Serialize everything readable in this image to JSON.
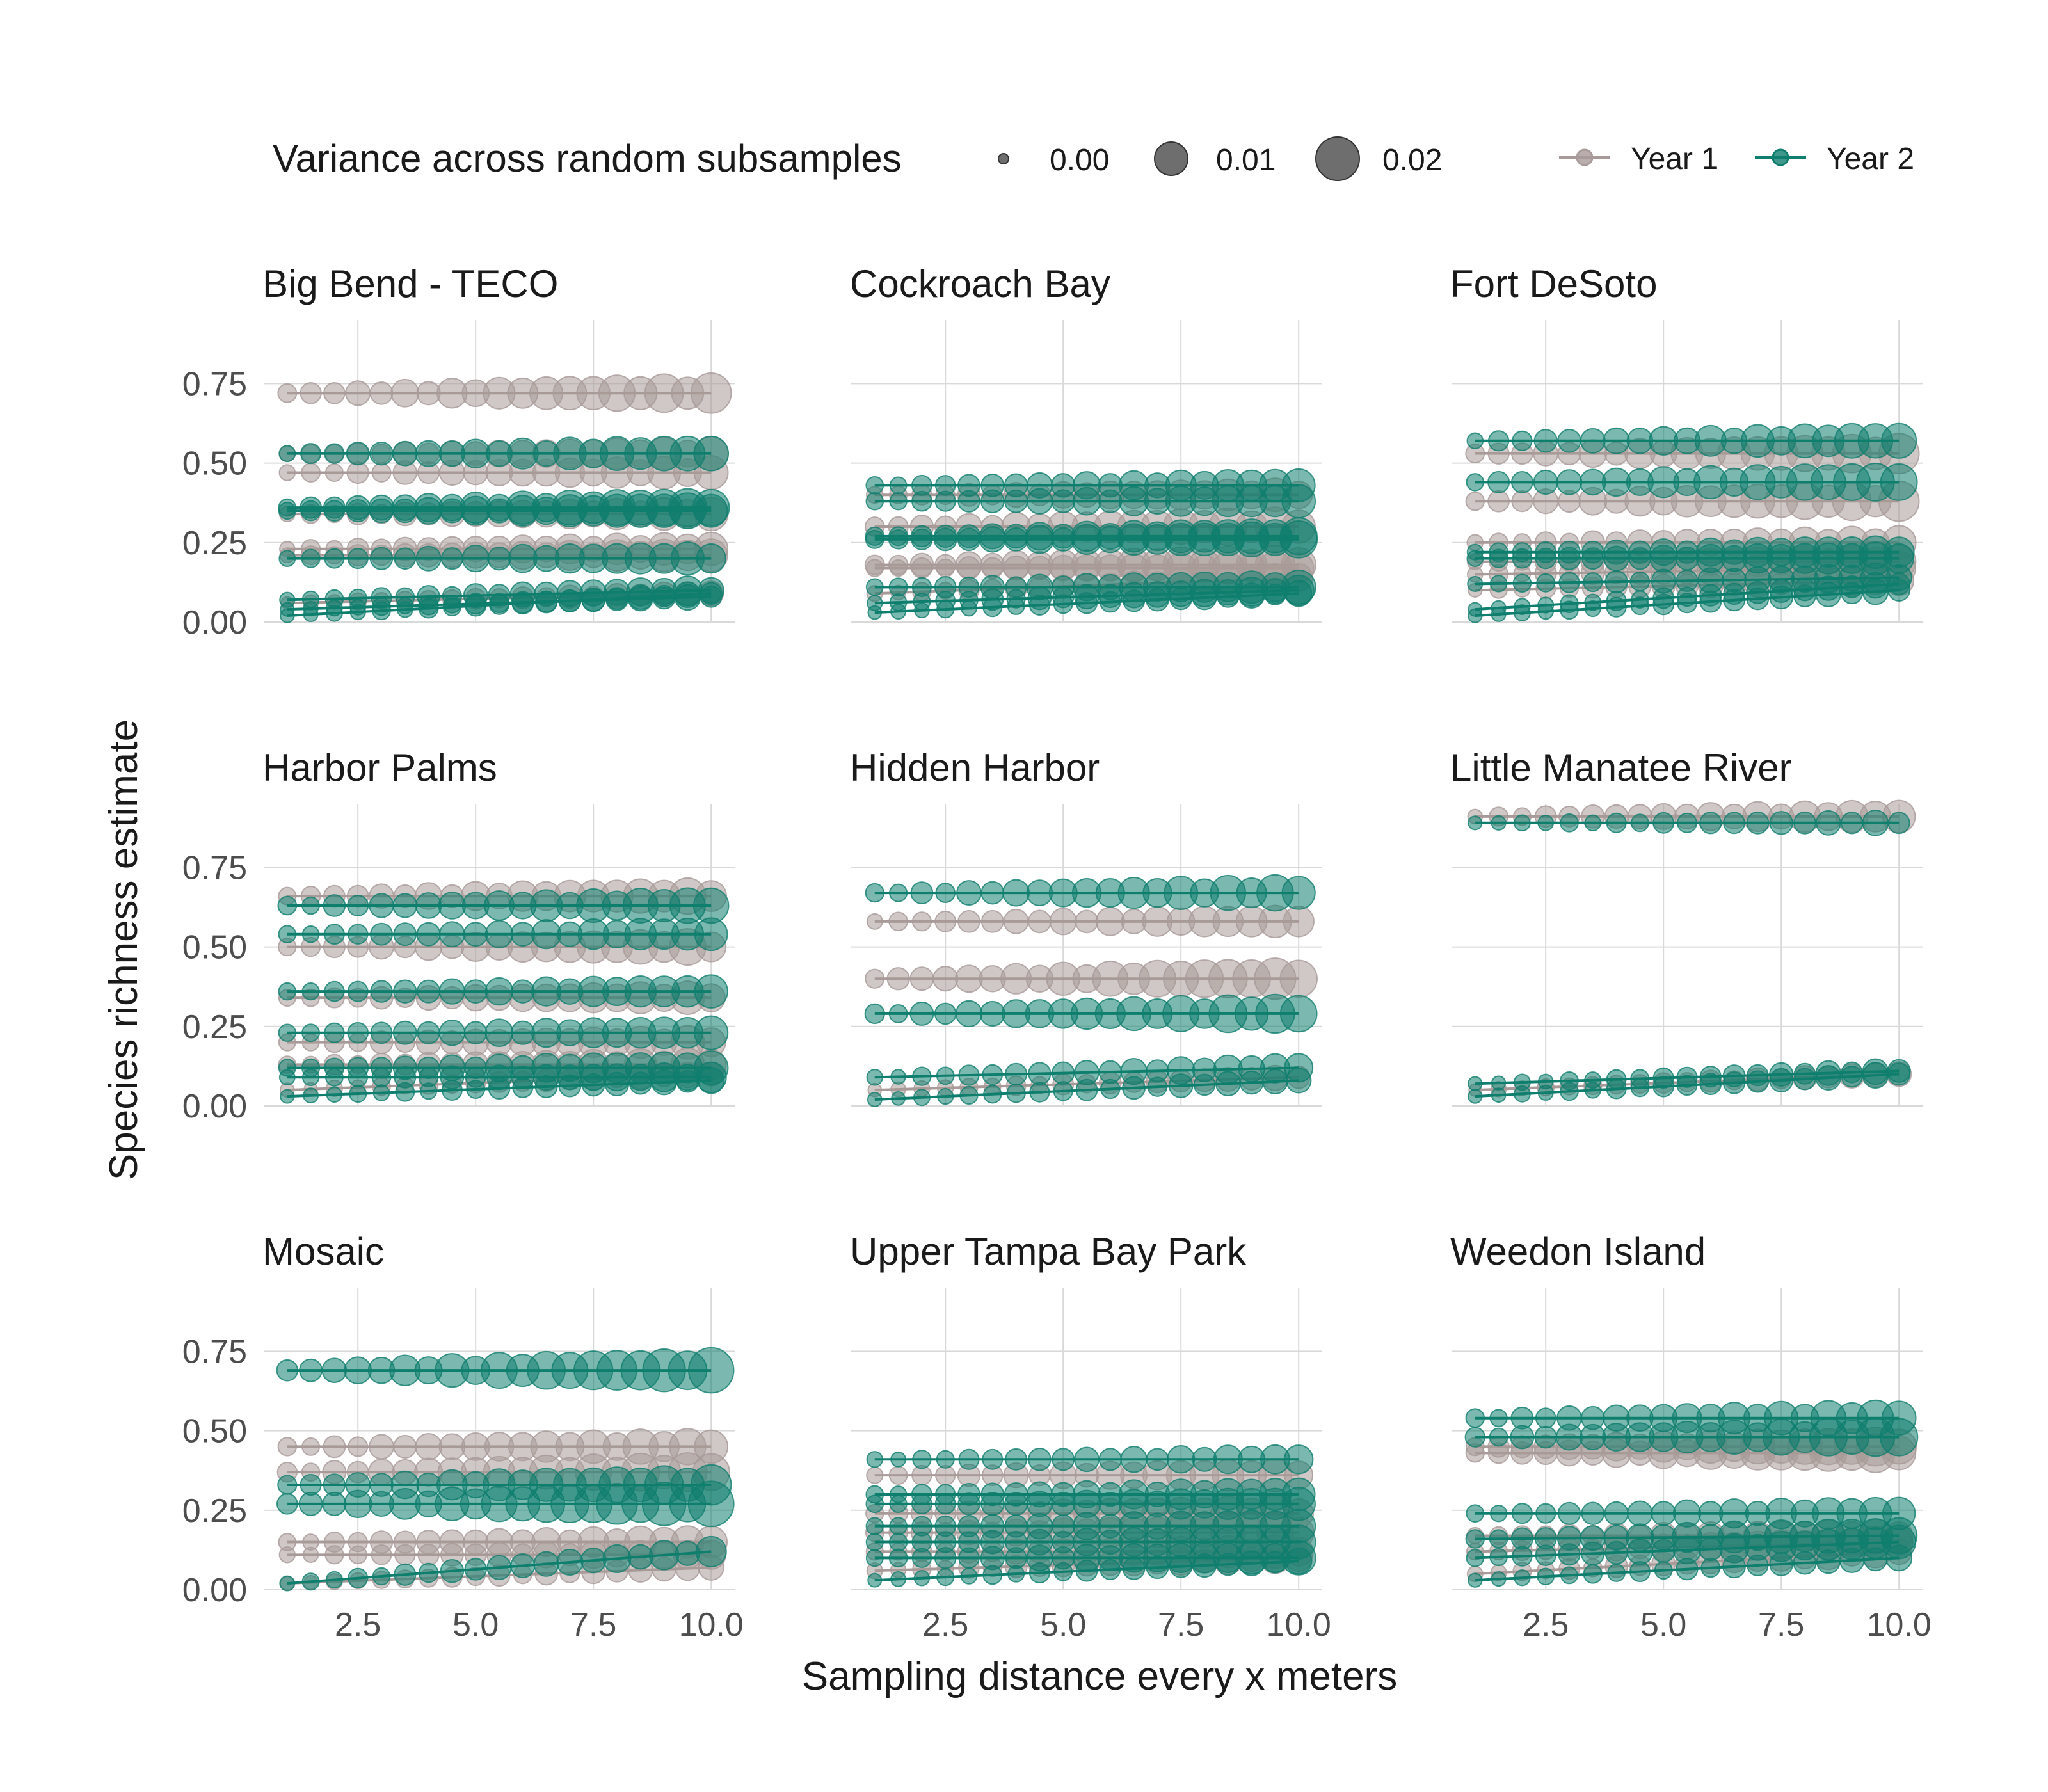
{
  "chart_data": {
    "type": "scatter",
    "xlabel": "Sampling distance every x meters",
    "ylabel": "Species richness estimate",
    "x_ticks": [
      "2.5",
      "5.0",
      "7.5",
      "10.0"
    ],
    "y_ticks": [
      "0.00",
      "0.25",
      "0.50",
      "0.75"
    ],
    "xlim": [
      0.5,
      10.5
    ],
    "ylim": [
      0,
      0.95
    ],
    "x": [
      1,
      1.5,
      2,
      2.5,
      3,
      3.5,
      4,
      4.5,
      5,
      5.5,
      6,
      6.5,
      7,
      7.5,
      8,
      8.5,
      9,
      9.5,
      10
    ],
    "grid": true,
    "legend_placement": "top",
    "size_legend": {
      "title": "Variance across random subsamples",
      "labels": [
        "0.00",
        "0.01",
        "0.02"
      ],
      "values": [
        0,
        0.01,
        0.02
      ]
    },
    "series_legend": [
      {
        "name": "Year 1",
        "color": "#a89a98"
      },
      {
        "name": "Year 2",
        "color": "#0f7e6e"
      }
    ],
    "facets": [
      {
        "title": "Big Bend - TECO",
        "year1": [
          {
            "y": [
              0.72,
              0.72
            ],
            "v": 0.012
          },
          {
            "y": [
              0.53,
              0.53
            ],
            "v": 0.008
          },
          {
            "y": [
              0.47,
              0.47
            ],
            "v": 0.008
          },
          {
            "y": [
              0.34,
              0.34
            ],
            "v": 0.008
          },
          {
            "y": [
              0.23,
              0.23
            ],
            "v": 0.008
          },
          {
            "y": [
              0.21,
              0.21
            ],
            "v": 0.008
          },
          {
            "y": [
              0.06,
              0.09
            ],
            "v": 0.004
          }
        ],
        "year2": [
          {
            "y": [
              0.53,
              0.53
            ],
            "v": 0.01
          },
          {
            "y": [
              0.36,
              0.36
            ],
            "v": 0.012
          },
          {
            "y": [
              0.35,
              0.35
            ],
            "v": 0.01
          },
          {
            "y": [
              0.2,
              0.2
            ],
            "v": 0.008
          },
          {
            "y": [
              0.07,
              0.1
            ],
            "v": 0.006
          },
          {
            "y": [
              0.04,
              0.08
            ],
            "v": 0.004
          },
          {
            "y": [
              0.02,
              0.09
            ],
            "v": 0.004
          }
        ]
      },
      {
        "title": "Cockroach Bay",
        "year1": [
          {
            "y": [
              0.4,
              0.4
            ],
            "v": 0.008
          },
          {
            "y": [
              0.3,
              0.3
            ],
            "v": 0.012
          },
          {
            "y": [
              0.18,
              0.18
            ],
            "v": 0.012
          },
          {
            "y": [
              0.17,
              0.17
            ],
            "v": 0.008
          },
          {
            "y": [
              0.09,
              0.14
            ],
            "v": 0.006
          }
        ],
        "year2": [
          {
            "y": [
              0.43,
              0.43
            ],
            "v": 0.008
          },
          {
            "y": [
              0.38,
              0.38
            ],
            "v": 0.008
          },
          {
            "y": [
              0.27,
              0.27
            ],
            "v": 0.01
          },
          {
            "y": [
              0.26,
              0.26
            ],
            "v": 0.01
          },
          {
            "y": [
              0.11,
              0.11
            ],
            "v": 0.008
          },
          {
            "y": [
              0.06,
              0.1
            ],
            "v": 0.006
          },
          {
            "y": [
              0.03,
              0.09
            ],
            "v": 0.004
          }
        ]
      },
      {
        "title": "Fort DeSoto",
        "year1": [
          {
            "y": [
              0.53,
              0.53
            ],
            "v": 0.012
          },
          {
            "y": [
              0.38,
              0.38
            ],
            "v": 0.012
          },
          {
            "y": [
              0.25,
              0.25
            ],
            "v": 0.008
          },
          {
            "y": [
              0.19,
              0.19
            ],
            "v": 0.008
          },
          {
            "y": [
              0.15,
              0.17
            ],
            "v": 0.008
          },
          {
            "y": [
              0.1,
              0.13
            ],
            "v": 0.006
          }
        ],
        "year2": [
          {
            "y": [
              0.57,
              0.57
            ],
            "v": 0.01
          },
          {
            "y": [
              0.44,
              0.44
            ],
            "v": 0.012
          },
          {
            "y": [
              0.22,
              0.22
            ],
            "v": 0.008
          },
          {
            "y": [
              0.2,
              0.2
            ],
            "v": 0.008
          },
          {
            "y": [
              0.12,
              0.14
            ],
            "v": 0.006
          },
          {
            "y": [
              0.04,
              0.12
            ],
            "v": 0.004
          },
          {
            "y": [
              0.02,
              0.1
            ],
            "v": 0.004
          }
        ]
      },
      {
        "title": "Harbor Palms",
        "year1": [
          {
            "y": [
              0.66,
              0.66
            ],
            "v": 0.01
          },
          {
            "y": [
              0.5,
              0.5
            ],
            "v": 0.01
          },
          {
            "y": [
              0.34,
              0.34
            ],
            "v": 0.008
          },
          {
            "y": [
              0.2,
              0.2
            ],
            "v": 0.008
          },
          {
            "y": [
              0.13,
              0.13
            ],
            "v": 0.008
          },
          {
            "y": [
              0.05,
              0.1
            ],
            "v": 0.004
          }
        ],
        "year2": [
          {
            "y": [
              0.63,
              0.63
            ],
            "v": 0.01
          },
          {
            "y": [
              0.54,
              0.54
            ],
            "v": 0.008
          },
          {
            "y": [
              0.36,
              0.36
            ],
            "v": 0.008
          },
          {
            "y": [
              0.23,
              0.23
            ],
            "v": 0.008
          },
          {
            "y": [
              0.12,
              0.12
            ],
            "v": 0.008
          },
          {
            "y": [
              0.09,
              0.09
            ],
            "v": 0.006
          },
          {
            "y": [
              0.03,
              0.08
            ],
            "v": 0.004
          }
        ]
      },
      {
        "title": "Hidden Harbor",
        "year1": [
          {
            "y": [
              0.58,
              0.58
            ],
            "v": 0.008
          },
          {
            "y": [
              0.4,
              0.4
            ],
            "v": 0.014
          },
          {
            "y": [
              0.05,
              0.09
            ],
            "v": 0.004
          }
        ],
        "year2": [
          {
            "y": [
              0.67,
              0.67
            ],
            "v": 0.01
          },
          {
            "y": [
              0.29,
              0.29
            ],
            "v": 0.012
          },
          {
            "y": [
              0.09,
              0.12
            ],
            "v": 0.006
          },
          {
            "y": [
              0.02,
              0.08
            ],
            "v": 0.004
          }
        ]
      },
      {
        "title": "Little Manatee River",
        "year1": [
          {
            "y": [
              0.91,
              0.91
            ],
            "v": 0.008
          },
          {
            "y": [
              0.05,
              0.1
            ],
            "v": 0.004
          }
        ],
        "year2": [
          {
            "y": [
              0.89,
              0.89
            ],
            "v": 0.004
          },
          {
            "y": [
              0.03,
              0.1
            ],
            "v": 0.004
          },
          {
            "y": [
              0.07,
              0.11
            ],
            "v": 0.004
          }
        ]
      },
      {
        "title": "Mosaic",
        "year1": [
          {
            "y": [
              0.45,
              0.45
            ],
            "v": 0.01
          },
          {
            "y": [
              0.37,
              0.37
            ],
            "v": 0.012
          },
          {
            "y": [
              0.15,
              0.15
            ],
            "v": 0.008
          },
          {
            "y": [
              0.11,
              0.11
            ],
            "v": 0.006
          },
          {
            "y": [
              0.02,
              0.07
            ],
            "v": 0.004
          }
        ],
        "year2": [
          {
            "y": [
              0.69,
              0.69
            ],
            "v": 0.016
          },
          {
            "y": [
              0.33,
              0.33
            ],
            "v": 0.012
          },
          {
            "y": [
              0.27,
              0.27
            ],
            "v": 0.016
          },
          {
            "y": [
              0.02,
              0.12
            ],
            "v": 0.006
          }
        ]
      },
      {
        "title": "Upper Tampa Bay Park",
        "year1": [
          {
            "y": [
              0.36,
              0.36
            ],
            "v": 0.008
          },
          {
            "y": [
              0.24,
              0.24
            ],
            "v": 0.01
          },
          {
            "y": [
              0.18,
              0.18
            ],
            "v": 0.01
          },
          {
            "y": [
              0.12,
              0.12
            ],
            "v": 0.008
          },
          {
            "y": [
              0.06,
              0.1
            ],
            "v": 0.006
          }
        ],
        "year2": [
          {
            "y": [
              0.41,
              0.41
            ],
            "v": 0.006
          },
          {
            "y": [
              0.3,
              0.3
            ],
            "v": 0.008
          },
          {
            "y": [
              0.27,
              0.27
            ],
            "v": 0.008
          },
          {
            "y": [
              0.2,
              0.2
            ],
            "v": 0.008
          },
          {
            "y": [
              0.15,
              0.15
            ],
            "v": 0.008
          },
          {
            "y": [
              0.1,
              0.1
            ],
            "v": 0.008
          },
          {
            "y": [
              0.03,
              0.09
            ],
            "v": 0.004
          }
        ]
      },
      {
        "title": "Weedon Island",
        "year1": [
          {
            "y": [
              0.45,
              0.45
            ],
            "v": 0.012
          },
          {
            "y": [
              0.43,
              0.43
            ],
            "v": 0.012
          },
          {
            "y": [
              0.17,
              0.17
            ],
            "v": 0.008
          },
          {
            "y": [
              0.12,
              0.15
            ],
            "v": 0.008
          },
          {
            "y": [
              0.05,
              0.12
            ],
            "v": 0.006
          }
        ],
        "year2": [
          {
            "y": [
              0.54,
              0.54
            ],
            "v": 0.01
          },
          {
            "y": [
              0.48,
              0.48
            ],
            "v": 0.012
          },
          {
            "y": [
              0.24,
              0.24
            ],
            "v": 0.008
          },
          {
            "y": [
              0.16,
              0.17
            ],
            "v": 0.01
          },
          {
            "y": [
              0.1,
              0.15
            ],
            "v": 0.008
          },
          {
            "y": [
              0.03,
              0.1
            ],
            "v": 0.004
          }
        ]
      }
    ]
  }
}
